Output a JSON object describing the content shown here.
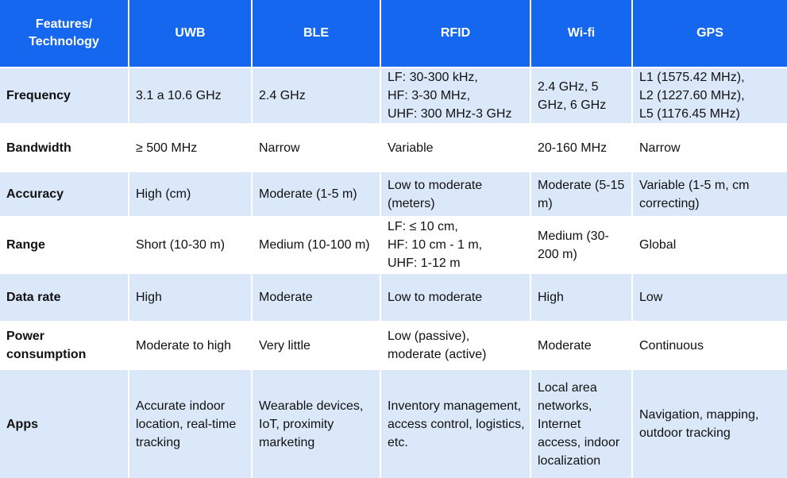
{
  "table": {
    "headers": [
      "Features/\nTechnology",
      "UWB",
      "BLE",
      "RFID",
      "Wi-fi",
      "GPS"
    ],
    "rows": [
      {
        "feature": "Frequency",
        "cells": [
          "3.1 a 10.6 GHz",
          "2.4 GHz",
          "LF: 30-300 kHz,\nHF: 3-30 MHz,\nUHF: 300 MHz-3 GHz",
          "2.4 GHz, 5 GHz, 6 GHz",
          "L1 (1575.42 MHz),\nL2 (1227.60 MHz),\nL5 (1176.45 MHz)"
        ]
      },
      {
        "feature": "Bandwidth",
        "cells": [
          "≥ 500 MHz",
          "Narrow",
          "Variable",
          "20-160 MHz",
          "Narrow"
        ]
      },
      {
        "feature": "Accuracy",
        "cells": [
          "High (cm)",
          "Moderate (1-5 m)",
          "Low to moderate (meters)",
          "Moderate (5-15 m)",
          "Variable (1-5 m, cm correcting)"
        ]
      },
      {
        "feature": "Range",
        "cells": [
          "Short (10-30 m)",
          "Medium (10-100 m)",
          "LF: ≤ 10 cm,\nHF: 10 cm - 1 m,\nUHF: 1-12 m",
          "Medium (30-200 m)",
          "Global"
        ]
      },
      {
        "feature": "Data rate",
        "cells": [
          "High",
          "Moderate",
          "Low to moderate",
          "High",
          "Low"
        ]
      },
      {
        "feature": "Power consumption",
        "cells": [
          "Moderate to high",
          "Very little",
          "Low (passive), moderate (active)",
          "Moderate",
          "Continuous"
        ]
      },
      {
        "feature": "Apps",
        "cells": [
          "Accurate indoor location, real-time tracking",
          "Wearable devices, IoT, proximity marketing",
          "Inventory management, access control, logistics, etc.",
          "Local area networks, Internet access, indoor localization",
          "Navigation, mapping, outdoor tracking"
        ]
      }
    ]
  },
  "colors": {
    "header_bg": "#1467ee",
    "header_text": "#ffffff",
    "row_shade": "#dae8f9",
    "row_plain": "#ffffff"
  }
}
